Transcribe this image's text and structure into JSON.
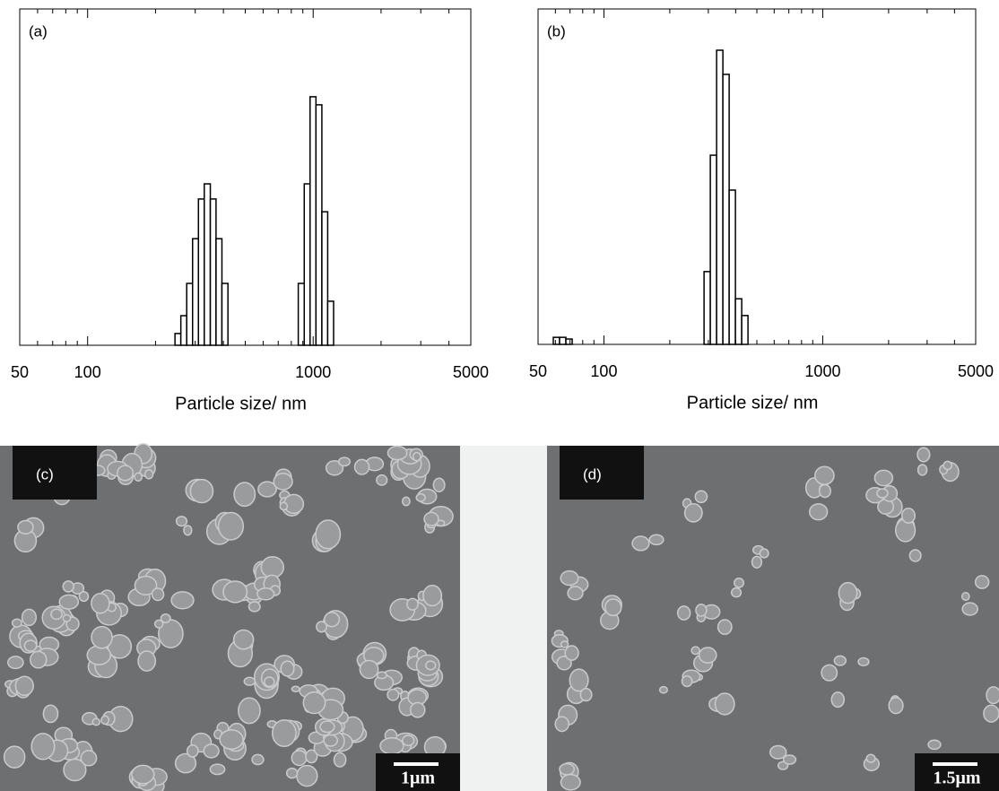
{
  "chart_data": [
    {
      "type": "histogram",
      "title": "(a)",
      "xlabel": "Particle size/ nm",
      "xlog": true,
      "xlim": [
        50,
        5000
      ],
      "xticks": [
        50,
        100,
        1000,
        5000
      ],
      "xminorticks": [
        60,
        70,
        80,
        90,
        200,
        300,
        400,
        500,
        600,
        700,
        800,
        900,
        2000,
        3000,
        4000
      ],
      "ylim": [
        0,
        100
      ],
      "color": "#ffffff",
      "edgecolor": "#000000",
      "bins": [
        244,
        259,
        275,
        292,
        310,
        329,
        350,
        371,
        394,
        419,
        444,
        472,
        501,
        532,
        565,
        600,
        637,
        676,
        718,
        762,
        809,
        859,
        913,
        969,
        1029,
        1093,
        1160,
        1232,
        1308
      ],
      "counts": [
        3.5,
        8.8,
        18.4,
        31.7,
        43.5,
        48,
        43.5,
        31.7,
        18.4,
        0,
        0,
        0,
        0,
        0,
        0,
        0,
        0,
        0,
        0,
        0,
        0,
        18.4,
        48,
        73.9,
        71.5,
        39.7,
        13.1,
        0
      ]
    },
    {
      "type": "histogram",
      "title": "(b)",
      "xlabel": "Particle size/ nm",
      "xlog": true,
      "xlim": [
        50,
        5000
      ],
      "xticks": [
        50,
        100,
        1000,
        5000
      ],
      "xminorticks": [
        60,
        70,
        80,
        90,
        200,
        300,
        400,
        500,
        600,
        700,
        800,
        900,
        2000,
        3000,
        4000
      ],
      "ylim": [
        0,
        100
      ],
      "color": "#ffffff",
      "edgecolor": "#000000",
      "bins": [
        58.7,
        62.7,
        67.0,
        71.6,
        76.5,
        81.7,
        87.3,
        93.2,
        99.6,
        106.4,
        113.7,
        121.4,
        129.8,
        138.6,
        148.1,
        158.2,
        169.0,
        180.5,
        192.9,
        206.1,
        220.1,
        235.2,
        251.3,
        268.4,
        286.8,
        306.4,
        327.3,
        349.7,
        373.6,
        399.0,
        426.3,
        455.4
      ],
      "counts": [
        2.1,
        2.1,
        1.6,
        0,
        0,
        0,
        0,
        0,
        0,
        0,
        0,
        0,
        0,
        0,
        0,
        0,
        0,
        0,
        0,
        0,
        0,
        0,
        0,
        0,
        21.7,
        56.4,
        87.7,
        80.5,
        46,
        13.6,
        8.6
      ]
    }
  ],
  "images": [
    {
      "label": "(c)",
      "scale_bar": "1μm"
    },
    {
      "label": "(d)",
      "scale_bar": "1.5μm"
    }
  ]
}
